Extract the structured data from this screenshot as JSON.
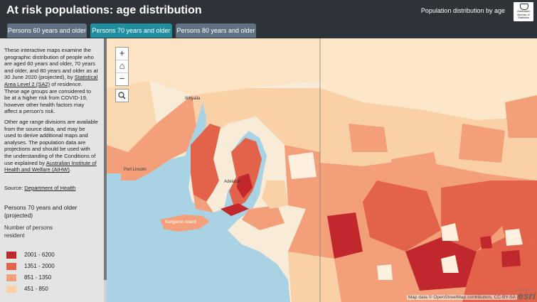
{
  "header": {
    "title": "At risk populations: age distribution",
    "subtitle": "Population distribution by age",
    "logo_text": "Australian Bureau of Statistics",
    "logo_icon": "coat-of-arms-icon"
  },
  "tabs": [
    {
      "label": "Persons 60 years and older",
      "active": false
    },
    {
      "label": "Persons 70 years and older",
      "active": true
    },
    {
      "label": "Persons 80 years and older",
      "active": false
    }
  ],
  "sidebar": {
    "p1_a": "These interactive maps examine the geographic distribution of people who are aged 60 years and older, 70 years and older, and 80 years and older as at 30 June 2020 (projected), by ",
    "p1_link": "Statistical Area Level 2 (SA2)",
    "p1_b": " of residence. These age groups are considered to be at a higher risk from COVID-19, however other health factors may affect a person's risk.",
    "p2_a": "Other age range divisions are available from the source data, and may be used to derive additional maps and analyses. The population data are projections and should be used with the understanding of the Conditions of use explained by ",
    "p2_link": "Australian Institute of Health and Welfare (AIHW)",
    "p2_b": ".",
    "source_label": "Source: ",
    "source_link": "Department of Health"
  },
  "legend": {
    "title": "Persons 70 years and older (projected)",
    "subtitle": "Number of persons resident",
    "items": [
      {
        "label": "2001 - 6200",
        "color": "#c0282d"
      },
      {
        "label": "1351 - 2000",
        "color": "#e2634a"
      },
      {
        "label": "851 - 1350",
        "color": "#f3a07a"
      },
      {
        "label": "451 - 850",
        "color": "#fad0a6"
      }
    ]
  },
  "map": {
    "controls": {
      "zoom_in": "+",
      "home": "⌂",
      "zoom_out": "−",
      "search": "search-icon"
    },
    "place_labels": [
      "Whyalla",
      "Port Lincoln",
      "Adelaide",
      "Kangaroo Island"
    ],
    "attribution": "Map data © OpenStreetMap contributors, CC-BY-SA",
    "powered_by": "POWERED BY",
    "esri": "esri",
    "colors": {
      "ocean": "#a9d3e4",
      "land_base": "#f8ecd8",
      "class_1": "#c0282d",
      "class_2": "#e2634a",
      "class_3": "#f3a07a",
      "class_4": "#fad0a6",
      "lowest": "#fdf0df"
    }
  }
}
